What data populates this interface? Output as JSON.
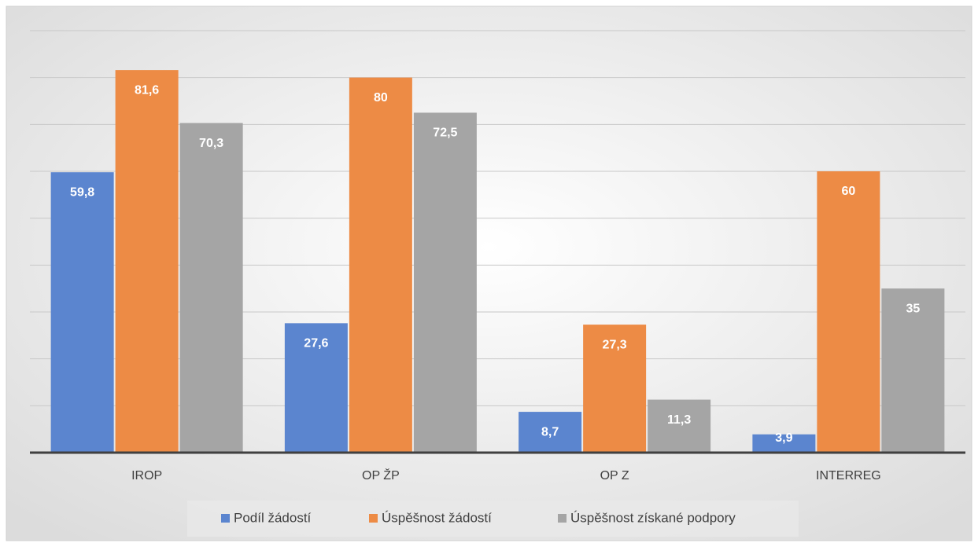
{
  "chart_data": {
    "type": "bar",
    "categories": [
      "IROP",
      "OP ŽP",
      "OP Z",
      "INTERREG"
    ],
    "series": [
      {
        "name": "Podíl žádostí",
        "color": "#5B85CF",
        "values": [
          59.8,
          27.6,
          8.7,
          3.9
        ],
        "value_labels": [
          "59,8",
          "27,6",
          "8,7",
          "3,9"
        ]
      },
      {
        "name": "Úspěšnost žádostí",
        "color": "#ED8B45",
        "values": [
          81.6,
          80,
          27.3,
          60
        ],
        "value_labels": [
          "81,6",
          "80",
          "27,3",
          "60"
        ]
      },
      {
        "name": "Úspěšnost získané podpory",
        "color": "#A5A5A5",
        "values": [
          70.3,
          72.5,
          11.3,
          35
        ],
        "value_labels": [
          "70,3",
          "72,5",
          "11,3",
          "35"
        ]
      }
    ],
    "ylim": [
      0,
      90
    ],
    "yticks": [
      0,
      10,
      20,
      30,
      40,
      50,
      60,
      70,
      80,
      90
    ],
    "grid": true,
    "legend": "bottom"
  }
}
